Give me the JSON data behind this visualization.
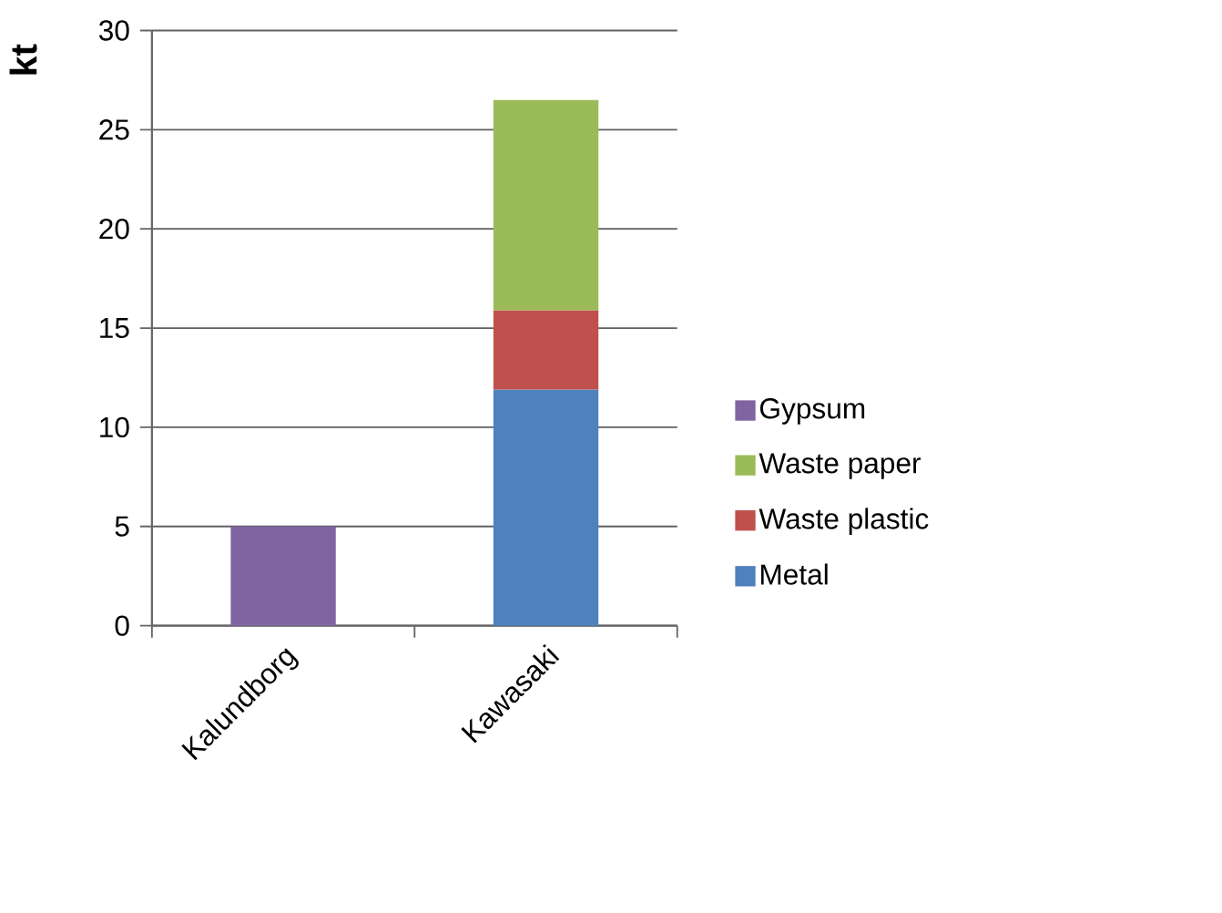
{
  "chart_data": {
    "type": "bar",
    "stacked": true,
    "ylabel": "kt",
    "categories": [
      "Kalundborg",
      "Kawasaki"
    ],
    "series": [
      {
        "name": "Metal",
        "color": "#4f81bd",
        "values": [
          null,
          11.9
        ]
      },
      {
        "name": "Waste plastic",
        "color": "#c0504d",
        "values": [
          null,
          4.0
        ]
      },
      {
        "name": "Waste paper",
        "color": "#9bbb59",
        "values": [
          null,
          10.6
        ]
      },
      {
        "name": "Gypsum",
        "color": "#8064a2",
        "values": [
          5,
          null
        ]
      }
    ],
    "ylim": [
      0,
      30
    ],
    "yticks": [
      0,
      5,
      10,
      15,
      20,
      25,
      30
    ],
    "grid": "y",
    "legend": "right"
  }
}
